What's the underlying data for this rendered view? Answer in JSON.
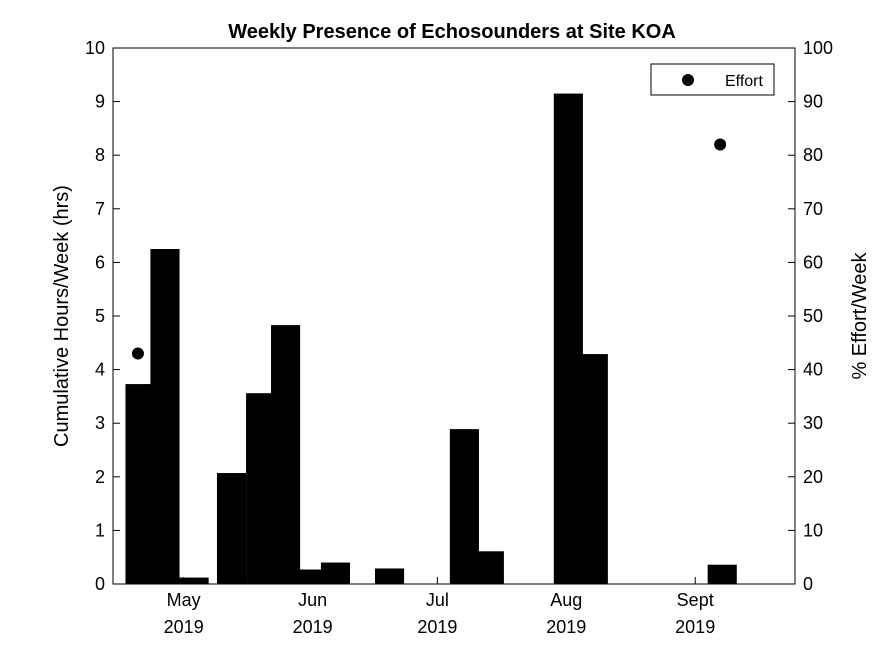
{
  "chart_data": {
    "type": "bar",
    "title": "Weekly Presence of Echosounders at Site KOA",
    "ylabel": "Cumulative Hours/Week (hrs)",
    "y2label": "% Effort/Week",
    "ylim": [
      0,
      10
    ],
    "y2lim": [
      0,
      100
    ],
    "yticks": [
      "0",
      "1",
      "2",
      "3",
      "4",
      "5",
      "6",
      "7",
      "8",
      "9",
      "10"
    ],
    "y2ticks": [
      "0",
      "10",
      "20",
      "30",
      "40",
      "50",
      "60",
      "70",
      "80",
      "90",
      "100"
    ],
    "xlim": [
      "2019-04-14",
      "2019-09-25"
    ],
    "xticks": [
      {
        "date": "2019-05-01",
        "month": "May",
        "year": "2019"
      },
      {
        "date": "2019-06-01",
        "month": "Jun",
        "year": "2019"
      },
      {
        "date": "2019-07-01",
        "month": "Jul",
        "year": "2019"
      },
      {
        "date": "2019-08-01",
        "month": "Aug",
        "year": "2019"
      },
      {
        "date": "2019-09-01",
        "month": "Sept",
        "year": "2019"
      }
    ],
    "bar_color": "#000000",
    "bars": [
      {
        "week_start": "2019-04-17",
        "hours": 3.73
      },
      {
        "week_start": "2019-04-23",
        "hours": 6.25
      },
      {
        "week_start": "2019-04-30",
        "hours": 0.12
      },
      {
        "week_start": "2019-05-09",
        "hours": 2.07
      },
      {
        "week_start": "2019-05-16",
        "hours": 3.56
      },
      {
        "week_start": "2019-05-22",
        "hours": 4.83
      },
      {
        "week_start": "2019-05-28",
        "hours": 0.27
      },
      {
        "week_start": "2019-06-03",
        "hours": 0.4
      },
      {
        "week_start": "2019-06-16",
        "hours": 0.29
      },
      {
        "week_start": "2019-07-04",
        "hours": 2.89
      },
      {
        "week_start": "2019-07-10",
        "hours": 0.61
      },
      {
        "week_start": "2019-07-29",
        "hours": 9.15
      },
      {
        "week_start": "2019-08-04",
        "hours": 4.29
      },
      {
        "week_start": "2019-09-04",
        "hours": 0.36
      }
    ],
    "effort_series": {
      "name": "Effort",
      "points": [
        {
          "date": "2019-04-20",
          "percent": 43
        },
        {
          "date": "2019-09-07",
          "percent": 82
        }
      ]
    },
    "legend_position": "top-right",
    "grid": false
  }
}
